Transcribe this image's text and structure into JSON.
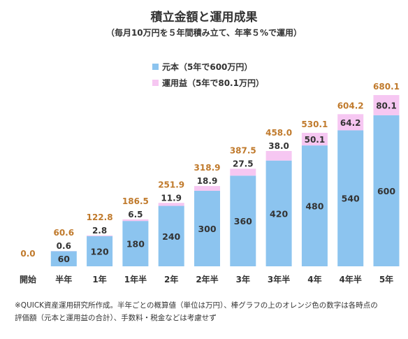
{
  "title": "積立金額と運用成果",
  "subtitle": "（毎月10万円を５年間積み立て、年率５%で運用）",
  "colors": {
    "principal": "#8cc4ef",
    "gain": "#f6c7f2",
    "total_label": "#c07a2c",
    "text": "#333333"
  },
  "legend": {
    "principal": "元本（5年で600万円）",
    "gain": "運用益（5年で80.1万円）"
  },
  "chart_data": {
    "type": "bar",
    "stacked": true,
    "categories": [
      "開始",
      "半年",
      "1年",
      "1年半",
      "2年",
      "2年半",
      "3年",
      "3年半",
      "4年",
      "4年半",
      "5年"
    ],
    "series": [
      {
        "name": "元本（5年で600万円）",
        "values": [
          0,
          60,
          120,
          180,
          240,
          300,
          360,
          420,
          480,
          540,
          600
        ]
      },
      {
        "name": "運用益（5年で80.1万円）",
        "values": [
          0,
          0.6,
          2.8,
          6.5,
          11.9,
          18.9,
          27.5,
          38.0,
          50.1,
          64.2,
          80.1
        ]
      }
    ],
    "totals": [
      "0.0",
      "60.6",
      "122.8",
      "186.5",
      "251.9",
      "318.9",
      "387.5",
      "458.0",
      "530.1",
      "604.2",
      "680.1"
    ],
    "principal_labels": [
      "",
      "60",
      "120",
      "180",
      "240",
      "300",
      "360",
      "420",
      "480",
      "540",
      "600"
    ],
    "gain_labels": [
      "",
      "0.6",
      "2.8",
      "6.5",
      "11.9",
      "18.9",
      "27.5",
      "38.0",
      "50.1",
      "64.2",
      "80.1"
    ],
    "ylim": [
      0,
      680.1
    ],
    "grid": false,
    "legend_position": "top-center"
  },
  "note_lines": [
    "※QUICK資産運用研究所作成。半年ごとの概算値（単位は万円）、棒グラフの上のオレンジ色の数字は各時点の",
    "評価額（元本と運用益の合計）、手数料・税金などは考慮せず"
  ]
}
